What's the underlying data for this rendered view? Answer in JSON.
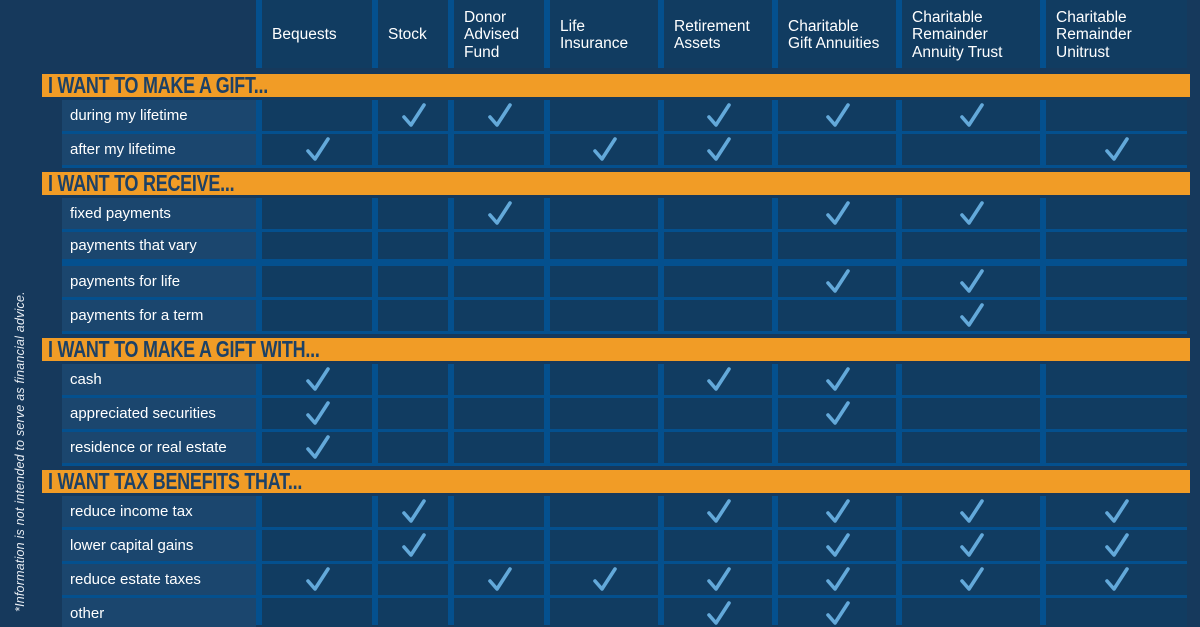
{
  "infographic": {
    "footnote": "*Information is not intended to serve as financial advice.",
    "check_icon": "checkmark-icon",
    "colors": {
      "navy_bg": "#16395c",
      "cell": "#113c61",
      "label_cell": "#1b466e",
      "grid_blue": "#04508e",
      "orange": "#f19c26",
      "check_blue": "#63a9da",
      "title_navy": "#1d4166",
      "text_white": "#ffffff"
    }
  },
  "chart_data": {
    "type": "table",
    "columns": [
      "Bequests",
      "Stock",
      "Donor Advised Fund",
      "Life Insurance",
      "Retirement Assets",
      "Charitable Gift Annuities",
      "Charitable Remainder Annuity Trust",
      "Charitable Remainder Unitrust"
    ],
    "cell_values": "1 = checkmark shown, 0 = empty cell",
    "row_groups": [
      {
        "group": "I WANT TO MAKE A GIFT...",
        "rows": [
          {
            "label": "during my lifetime",
            "checks": [
              0,
              1,
              1,
              0,
              1,
              1,
              1,
              0
            ]
          },
          {
            "label": "after my lifetime",
            "checks": [
              1,
              0,
              0,
              1,
              1,
              0,
              0,
              1
            ]
          }
        ]
      },
      {
        "group": "I WANT TO RECEIVE...",
        "rows": [
          {
            "label": "fixed payments",
            "checks": [
              0,
              0,
              1,
              0,
              0,
              1,
              1,
              0
            ]
          },
          {
            "label": "payments that vary",
            "checks": [
              0,
              0,
              0,
              0,
              0,
              0,
              0,
              0
            ]
          },
          {
            "label": "payments for life",
            "checks": [
              0,
              0,
              0,
              0,
              0,
              1,
              1,
              0
            ]
          },
          {
            "label": "payments for a term",
            "checks": [
              0,
              0,
              0,
              0,
              0,
              0,
              1,
              0
            ]
          }
        ]
      },
      {
        "group": "I WANT TO MAKE A GIFT WITH...",
        "rows": [
          {
            "label": "cash",
            "checks": [
              1,
              0,
              0,
              0,
              1,
              1,
              0,
              0
            ]
          },
          {
            "label": "appreciated securities",
            "checks": [
              1,
              0,
              0,
              0,
              0,
              1,
              0,
              0
            ]
          },
          {
            "label": "residence or real estate",
            "checks": [
              1,
              0,
              0,
              0,
              0,
              0,
              0,
              0
            ]
          }
        ]
      },
      {
        "group": "I WANT TAX BENEFITS THAT...",
        "rows": [
          {
            "label": "reduce income tax",
            "checks": [
              0,
              1,
              0,
              0,
              1,
              1,
              1,
              1
            ]
          },
          {
            "label": "lower capital gains",
            "checks": [
              0,
              1,
              0,
              0,
              0,
              1,
              1,
              1
            ]
          },
          {
            "label": "reduce estate taxes",
            "checks": [
              1,
              0,
              1,
              1,
              1,
              1,
              1,
              1
            ]
          },
          {
            "label": "other",
            "checks": [
              0,
              0,
              0,
              0,
              1,
              1,
              0,
              0
            ]
          }
        ]
      }
    ]
  }
}
